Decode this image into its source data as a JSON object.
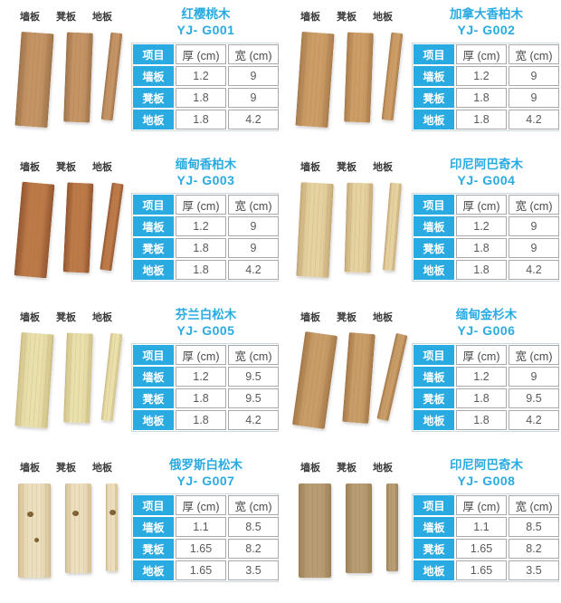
{
  "colors": {
    "accent_blue": "#29abe2",
    "value_text": "#58595b",
    "header_text": "#4a4a4c",
    "cell_border": "#a7a9ac",
    "plank_label_text": "#3a3a3a",
    "background": "#ffffff"
  },
  "plank_labels": [
    "墙板",
    "凳板",
    "地板"
  ],
  "table_headers": [
    "项目",
    "厚 (cm)",
    "宽 (cm)"
  ],
  "panels": [
    {
      "name": "红樱桃木",
      "model": "YJ- G001",
      "rows": [
        [
          "墙板",
          "1.2",
          "9"
        ],
        [
          "凳板",
          "1.8",
          "9"
        ],
        [
          "地板",
          "1.8",
          "4.2"
        ]
      ],
      "wood": {
        "light": "#c49465",
        "dark": "#9f744a",
        "lean": 4,
        "knots": false
      }
    },
    {
      "name": "加拿大香柏木",
      "model": "YJ- G002",
      "rows": [
        [
          "墙板",
          "1.2",
          "9"
        ],
        [
          "凳板",
          "1.8",
          "9"
        ],
        [
          "地板",
          "1.8",
          "4.2"
        ]
      ],
      "wood": {
        "light": "#cc9d66",
        "dark": "#a87c4c",
        "lean": 4,
        "knots": false
      }
    },
    {
      "name": "缅甸香柏木",
      "model": "YJ- G003",
      "rows": [
        [
          "墙板",
          "1.2",
          "9"
        ],
        [
          "凳板",
          "1.8",
          "9"
        ],
        [
          "地板",
          "1.8",
          "4.2"
        ]
      ],
      "wood": {
        "light": "#bd7a49",
        "dark": "#92552f",
        "lean": 5,
        "knots": false
      }
    },
    {
      "name": "印尼阿巴奇木",
      "model": "YJ- G004",
      "rows": [
        [
          "墙板",
          "1.2",
          "9"
        ],
        [
          "凳板",
          "1.8",
          "9"
        ],
        [
          "地板",
          "1.8",
          "4.2"
        ]
      ],
      "wood": {
        "light": "#e6d2a0",
        "dark": "#c6ab78",
        "lean": 3,
        "knots": false
      }
    },
    {
      "name": "芬兰白松木",
      "model": "YJ- G005",
      "rows": [
        [
          "墙板",
          "1.2",
          "9.5"
        ],
        [
          "凳板",
          "1.8",
          "9.5"
        ],
        [
          "地板",
          "1.8",
          "4.2"
        ]
      ],
      "wood": {
        "light": "#eae0ab",
        "dark": "#cfc187",
        "lean": 4,
        "knots": false
      }
    },
    {
      "name": "缅甸金杉木",
      "model": "YJ- G006",
      "rows": [
        [
          "墙板",
          "1.2",
          "9"
        ],
        [
          "凳板",
          "1.8",
          "9.5"
        ],
        [
          "地板",
          "1.8",
          "4.2"
        ]
      ],
      "wood": {
        "light": "#c99d68",
        "dark": "#a37847",
        "lean": 8,
        "knots": false
      }
    },
    {
      "name": "俄罗斯白松木",
      "model": "YJ- G007",
      "rows": [
        [
          "墙板",
          "1.1",
          "8.5"
        ],
        [
          "凳板",
          "1.65",
          "8.2"
        ],
        [
          "地板",
          "1.65",
          "3.5"
        ]
      ],
      "wood": {
        "light": "#ecdfbe",
        "dark": "#d4c093",
        "lean": 0,
        "knots": true
      }
    },
    {
      "name": "印尼阿巴奇木",
      "model": "YJ- G008",
      "rows": [
        [
          "墙板",
          "1.1",
          "8.5"
        ],
        [
          "凳板",
          "1.65",
          "8.2"
        ],
        [
          "地板",
          "1.65",
          "3.5"
        ]
      ],
      "wood": {
        "light": "#b89d74",
        "dark": "#9c8157",
        "lean": 0,
        "knots": false
      }
    }
  ]
}
